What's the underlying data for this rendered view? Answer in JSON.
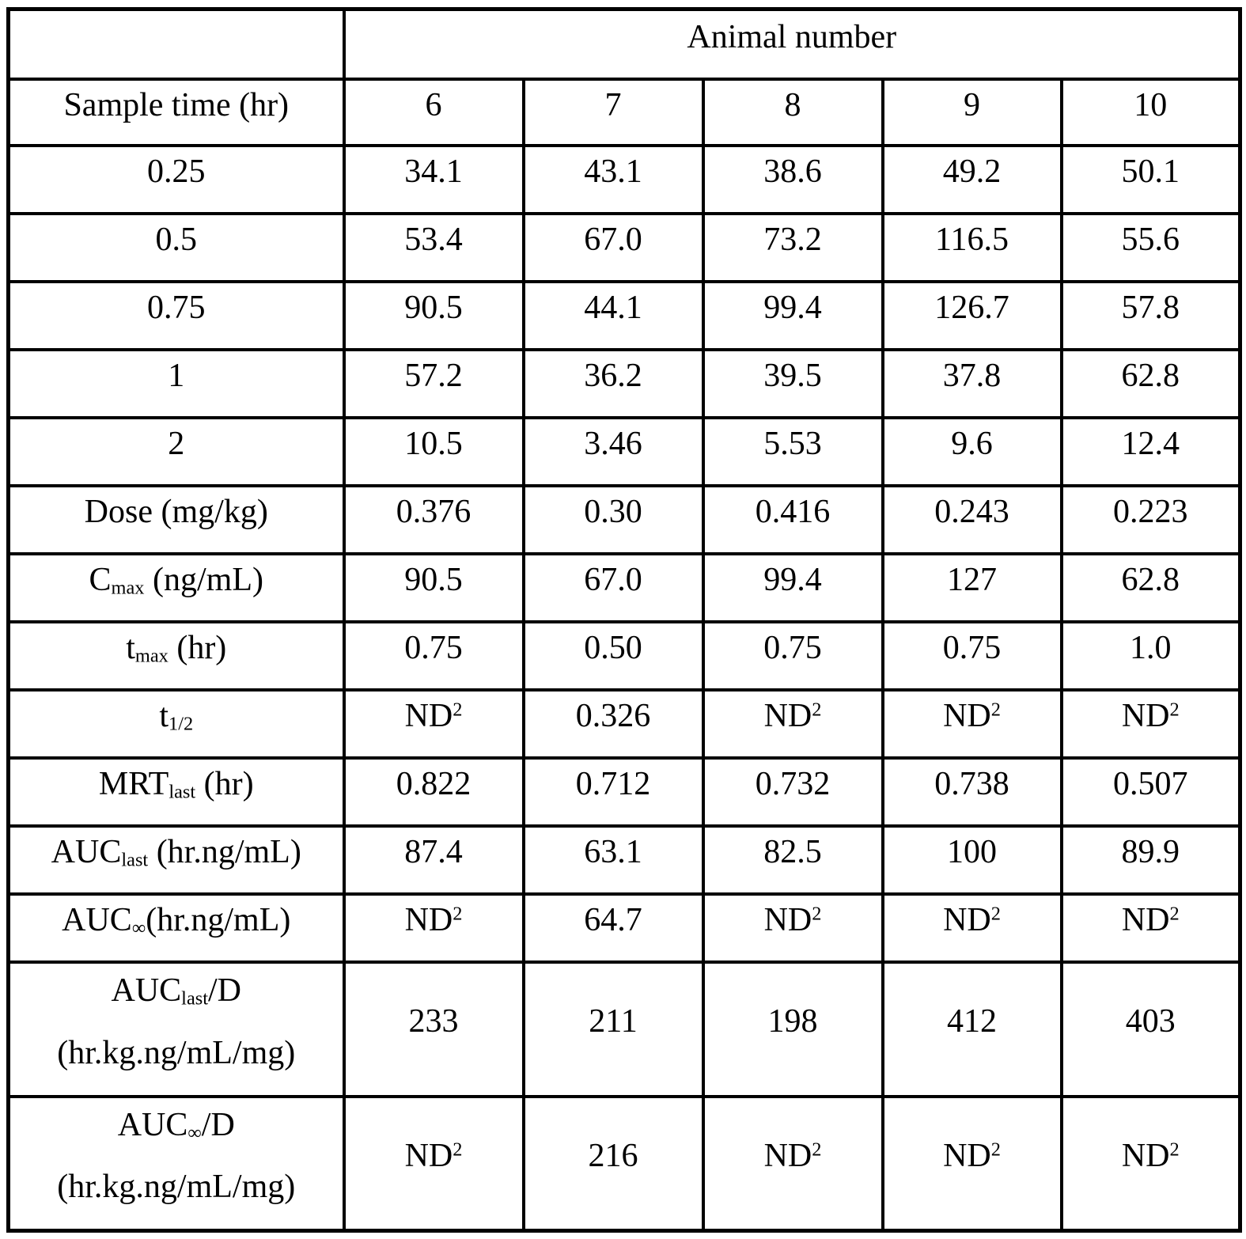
{
  "table": {
    "header_group": "Animal number",
    "row_header_label": "Sample time (hr)",
    "animal_columns": [
      "6",
      "7",
      "8",
      "9",
      "10"
    ],
    "rows": [
      {
        "label": "0.25",
        "values": [
          "34.1",
          "43.1",
          "38.6",
          "49.2",
          "50.1"
        ]
      },
      {
        "label": "0.5",
        "values": [
          "53.4",
          "67.0",
          "73.2",
          "116.5",
          "55.6"
        ]
      },
      {
        "label": "0.75",
        "values": [
          "90.5",
          "44.1",
          "99.4",
          "126.7",
          "57.8"
        ]
      },
      {
        "label": "1",
        "values": [
          "57.2",
          "36.2",
          "39.5",
          "37.8",
          "62.8"
        ]
      },
      {
        "label": "2",
        "values": [
          "10.5",
          "3.46",
          "5.53",
          "9.6",
          "12.4"
        ]
      },
      {
        "label": "Dose (mg/kg)",
        "values": [
          "0.376",
          "0.30",
          "0.416",
          "0.243",
          "0.223"
        ]
      },
      {
        "label": {
          "rich": [
            [
              "C",
              {
                "t": "max",
                "s": "sub"
              },
              " (ng/mL)"
            ]
          ]
        },
        "values": [
          "90.5",
          "67.0",
          "99.4",
          "127",
          "62.8"
        ]
      },
      {
        "label": {
          "rich": [
            [
              "t",
              {
                "t": "max",
                "s": "sub"
              },
              " (hr)"
            ]
          ]
        },
        "values": [
          "0.75",
          "0.50",
          "0.75",
          "0.75",
          "1.0"
        ]
      },
      {
        "label": {
          "rich": [
            [
              "t",
              {
                "t": "1/2",
                "s": "sub"
              }
            ]
          ]
        },
        "values": [
          {
            "rich": [
              [
                "ND",
                {
                  "t": "2",
                  "s": "sup"
                }
              ]
            ]
          },
          "0.326",
          {
            "rich": [
              [
                "ND",
                {
                  "t": "2",
                  "s": "sup"
                }
              ]
            ]
          },
          {
            "rich": [
              [
                "ND",
                {
                  "t": "2",
                  "s": "sup"
                }
              ]
            ]
          },
          {
            "rich": [
              [
                "ND",
                {
                  "t": "2",
                  "s": "sup"
                }
              ]
            ]
          }
        ]
      },
      {
        "label": {
          "rich": [
            [
              "MRT",
              {
                "t": "last",
                "s": "sub"
              },
              " (hr)"
            ]
          ]
        },
        "values": [
          "0.822",
          "0.712",
          "0.732",
          "0.738",
          "0.507"
        ]
      },
      {
        "label": {
          "rich": [
            [
              "AUC",
              {
                "t": "last",
                "s": "sub"
              },
              " (hr.ng/mL)"
            ]
          ]
        },
        "values": [
          "87.4",
          "63.1",
          "82.5",
          "100",
          "89.9"
        ]
      },
      {
        "label": {
          "rich": [
            [
              "AUC",
              {
                "t": "∞",
                "s": "sub"
              },
              "(hr.ng/mL)"
            ]
          ]
        },
        "values": [
          {
            "rich": [
              [
                "ND",
                {
                  "t": "2",
                  "s": "sup"
                }
              ]
            ]
          },
          "64.7",
          {
            "rich": [
              [
                "ND",
                {
                  "t": "2",
                  "s": "sup"
                }
              ]
            ]
          },
          {
            "rich": [
              [
                "ND",
                {
                  "t": "2",
                  "s": "sup"
                }
              ]
            ]
          },
          {
            "rich": [
              [
                "ND",
                {
                  "t": "2",
                  "s": "sup"
                }
              ]
            ]
          }
        ]
      },
      {
        "label": {
          "rich": [
            [
              "AUC",
              {
                "t": "last",
                "s": "sub"
              },
              "/D"
            ],
            [
              "(hr.kg.ng/mL/mg)"
            ]
          ]
        },
        "values": [
          "233",
          "211",
          "198",
          "412",
          "403"
        ]
      },
      {
        "label": {
          "rich": [
            [
              "AUC",
              {
                "t": "∞",
                "s": "sub"
              },
              "/D"
            ],
            [
              "(hr.kg.ng/mL/mg)"
            ]
          ]
        },
        "values": [
          {
            "rich": [
              [
                "ND",
                {
                  "t": "2",
                  "s": "sup"
                }
              ]
            ]
          },
          "216",
          {
            "rich": [
              [
                "ND",
                {
                  "t": "2",
                  "s": "sup"
                }
              ]
            ]
          },
          {
            "rich": [
              [
                "ND",
                {
                  "t": "2",
                  "s": "sup"
                }
              ]
            ]
          },
          {
            "rich": [
              [
                "ND",
                {
                  "t": "2",
                  "s": "sup"
                }
              ]
            ]
          }
        ]
      }
    ]
  }
}
